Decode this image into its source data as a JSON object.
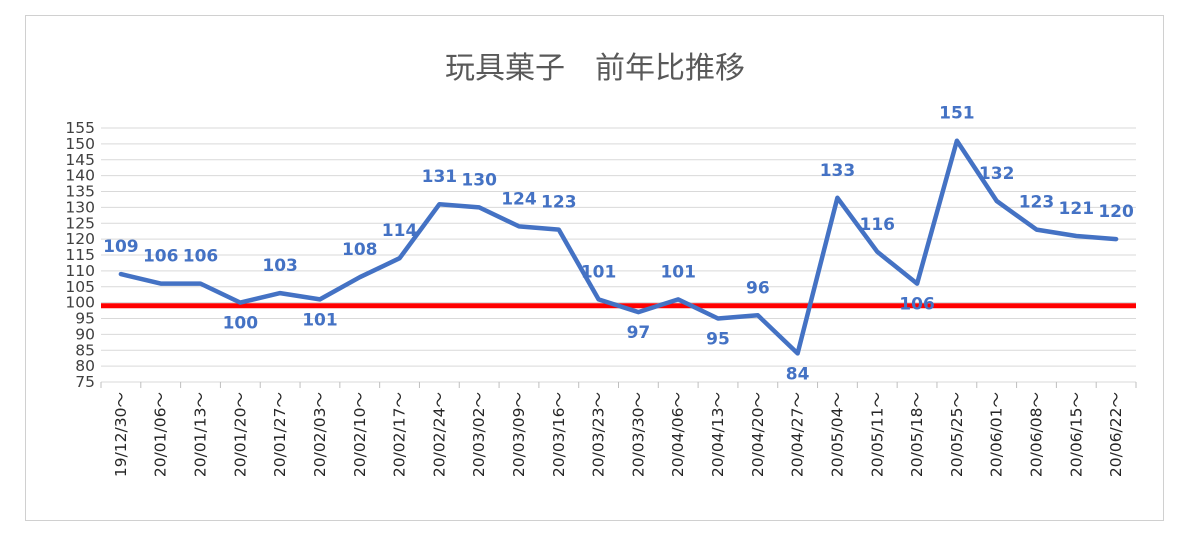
{
  "chart_data": {
    "type": "line",
    "title": "玩具菓子　前年比推移",
    "xlabel": "",
    "ylabel": "",
    "ylim": [
      75,
      155
    ],
    "yticks": [
      75,
      80,
      85,
      90,
      95,
      100,
      105,
      110,
      115,
      120,
      125,
      130,
      135,
      140,
      145,
      150,
      155
    ],
    "grid": true,
    "legend": "none",
    "categories": [
      "19/12/30～",
      "20/01/06～",
      "20/01/13～",
      "20/01/20～",
      "20/01/27～",
      "20/02/03～",
      "20/02/10～",
      "20/02/17～",
      "20/02/24～",
      "20/03/02～",
      "20/03/09～",
      "20/03/16～",
      "20/03/23～",
      "20/03/30～",
      "20/04/06～",
      "20/04/13～",
      "20/04/20～",
      "20/04/27～",
      "20/05/04～",
      "20/05/11～",
      "20/05/18～",
      "20/05/25～",
      "20/06/01～",
      "20/06/08～",
      "20/06/15～",
      "20/06/22～"
    ],
    "series": [
      {
        "values": [
          109,
          106,
          106,
          100,
          103,
          101,
          108,
          114,
          131,
          130,
          124,
          123,
          101,
          97,
          101,
          95,
          96,
          84,
          133,
          116,
          106,
          151,
          132,
          123,
          121,
          120
        ],
        "color": "#4472C4"
      }
    ],
    "reference_line": {
      "value": 99,
      "color": "#FF0000"
    }
  }
}
